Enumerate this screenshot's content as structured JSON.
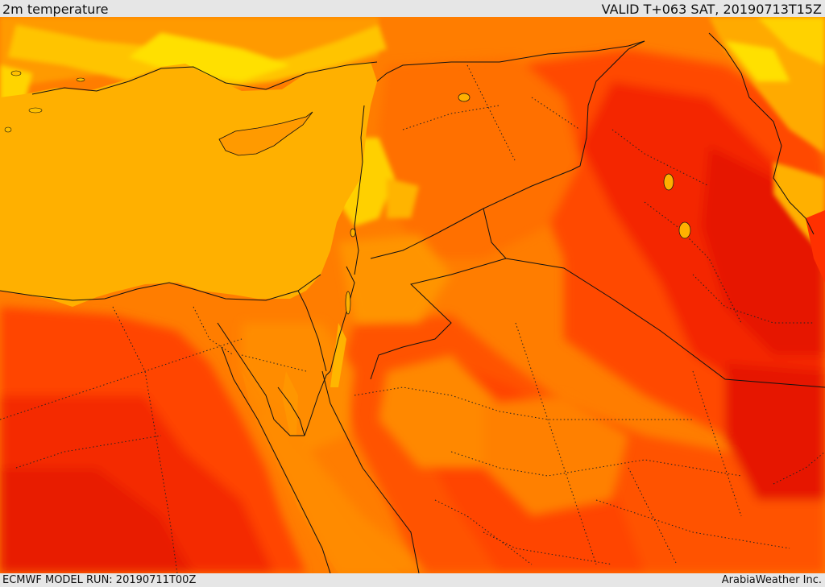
{
  "header": {
    "title": "2m temperature",
    "valid_label": "VALID T+063 SAT, 20190713T15Z"
  },
  "footer": {
    "model_run": "ECMWF MODEL RUN: 20190711T00Z",
    "credit": "ArabiaWeather Inc."
  },
  "map": {
    "variable": "2m temperature",
    "region": "Eastern Mediterranean / Levant / Arabian Peninsula",
    "colors": {
      "sea": "#ffb000",
      "cool_land": "#ffc800",
      "mild": "#ffd800",
      "warm": "#ff8a00",
      "hot": "#ff5a00",
      "very_hot": "#ff3a00",
      "extreme": "#f21a00",
      "boundary": "#111111"
    }
  }
}
